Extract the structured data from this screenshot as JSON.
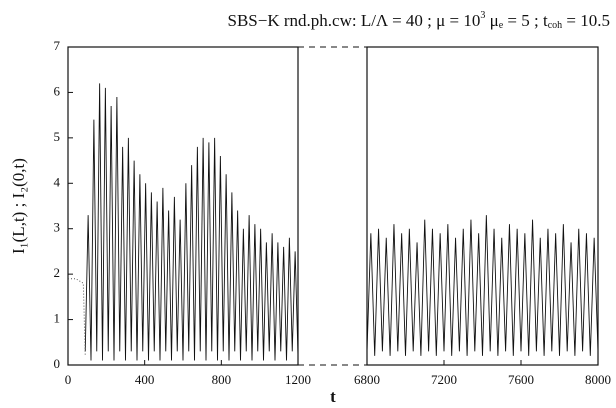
{
  "chart_data": [
    {
      "type": "line",
      "title": [
        "SBS−K rnd.ph.cw: L/Λ = 40 ;  μ = 10",
        "3",
        " μ",
        "e",
        " = 5 ; t",
        "coh",
        " = 10.5"
      ],
      "ylabel": "I₁(L,t) ;  I₂(0,t)",
      "xlabel": "t",
      "xlim": [
        0,
        1200
      ],
      "xticks": [
        0,
        400,
        800,
        1200
      ],
      "ylim": [
        0,
        7
      ],
      "yticks": [
        0,
        1,
        2,
        3,
        4,
        5,
        6,
        7
      ],
      "series": [
        {
          "color": "#111111",
          "style": "solid",
          "x": [
            90,
            105,
            120,
            135,
            150,
            165,
            180,
            195,
            210,
            225,
            240,
            255,
            270,
            285,
            300,
            315,
            330,
            345,
            360,
            375,
            390,
            405,
            420,
            435,
            450,
            465,
            480,
            495,
            510,
            525,
            540,
            555,
            570,
            585,
            600,
            615,
            630,
            645,
            660,
            675,
            690,
            705,
            720,
            735,
            750,
            765,
            780,
            795,
            810,
            825,
            840,
            855,
            870,
            885,
            900,
            915,
            930,
            945,
            960,
            975,
            990,
            1005,
            1020,
            1035,
            1050,
            1065,
            1080,
            1095,
            1110,
            1125,
            1140,
            1155,
            1170,
            1185,
            1200
          ],
          "values": [
            0.3,
            3.3,
            0.1,
            5.4,
            0.3,
            6.2,
            0.1,
            6.1,
            0.3,
            5.7,
            0.1,
            5.9,
            0.3,
            4.8,
            0.1,
            5.0,
            0.3,
            4.5,
            0.1,
            4.2,
            0.3,
            4.0,
            0.1,
            3.8,
            0.3,
            3.6,
            0.1,
            3.9,
            0.3,
            3.4,
            0.1,
            3.7,
            0.3,
            3.2,
            0.1,
            4.0,
            0.3,
            4.4,
            0.1,
            4.8,
            0.3,
            5.0,
            0.1,
            4.9,
            0.3,
            5.0,
            0.1,
            4.6,
            0.3,
            4.2,
            0.1,
            3.8,
            0.3,
            3.4,
            0.1,
            3.0,
            0.3,
            3.3,
            0.1,
            3.1,
            0.3,
            3.0,
            0.1,
            2.7,
            0.3,
            2.9,
            0.1,
            2.7,
            0.3,
            2.6,
            0.1,
            2.8,
            0.3,
            2.5,
            0.2
          ]
        },
        {
          "color": "#555555",
          "style": "dotted",
          "x": [
            0,
            20,
            40,
            60,
            80,
            90
          ],
          "values": [
            1.9,
            1.9,
            1.9,
            1.85,
            1.8,
            0.2
          ]
        }
      ]
    },
    {
      "type": "line",
      "xlim": [
        6800,
        8000
      ],
      "xticks": [
        6800,
        7200,
        7600,
        8000
      ],
      "ylim": [
        0,
        7
      ],
      "series": [
        {
          "color": "#111111",
          "style": "solid",
          "x": [
            6800,
            6820,
            6840,
            6860,
            6880,
            6900,
            6920,
            6940,
            6960,
            6980,
            7000,
            7020,
            7040,
            7060,
            7080,
            7100,
            7120,
            7140,
            7160,
            7180,
            7200,
            7220,
            7240,
            7260,
            7280,
            7300,
            7320,
            7340,
            7360,
            7380,
            7400,
            7420,
            7440,
            7460,
            7480,
            7500,
            7520,
            7540,
            7560,
            7580,
            7600,
            7620,
            7640,
            7660,
            7680,
            7700,
            7720,
            7740,
            7760,
            7780,
            7800,
            7820,
            7840,
            7860,
            7880,
            7900,
            7920,
            7940,
            7960,
            7980,
            8000
          ],
          "values": [
            0.3,
            2.9,
            0.2,
            3.0,
            0.3,
            2.8,
            0.2,
            3.1,
            0.3,
            2.9,
            0.2,
            3.0,
            0.3,
            2.7,
            0.2,
            3.2,
            0.3,
            3.0,
            0.2,
            2.9,
            0.3,
            3.1,
            0.2,
            2.8,
            0.3,
            3.0,
            0.2,
            3.2,
            0.3,
            2.9,
            0.2,
            3.3,
            0.3,
            3.0,
            0.2,
            2.8,
            0.3,
            3.1,
            0.2,
            3.0,
            0.3,
            2.9,
            0.2,
            3.2,
            0.3,
            2.8,
            0.2,
            3.0,
            0.3,
            2.9,
            0.2,
            3.1,
            0.3,
            2.7,
            0.2,
            3.0,
            0.3,
            2.9,
            0.2,
            2.8,
            0.3
          ]
        }
      ]
    }
  ]
}
